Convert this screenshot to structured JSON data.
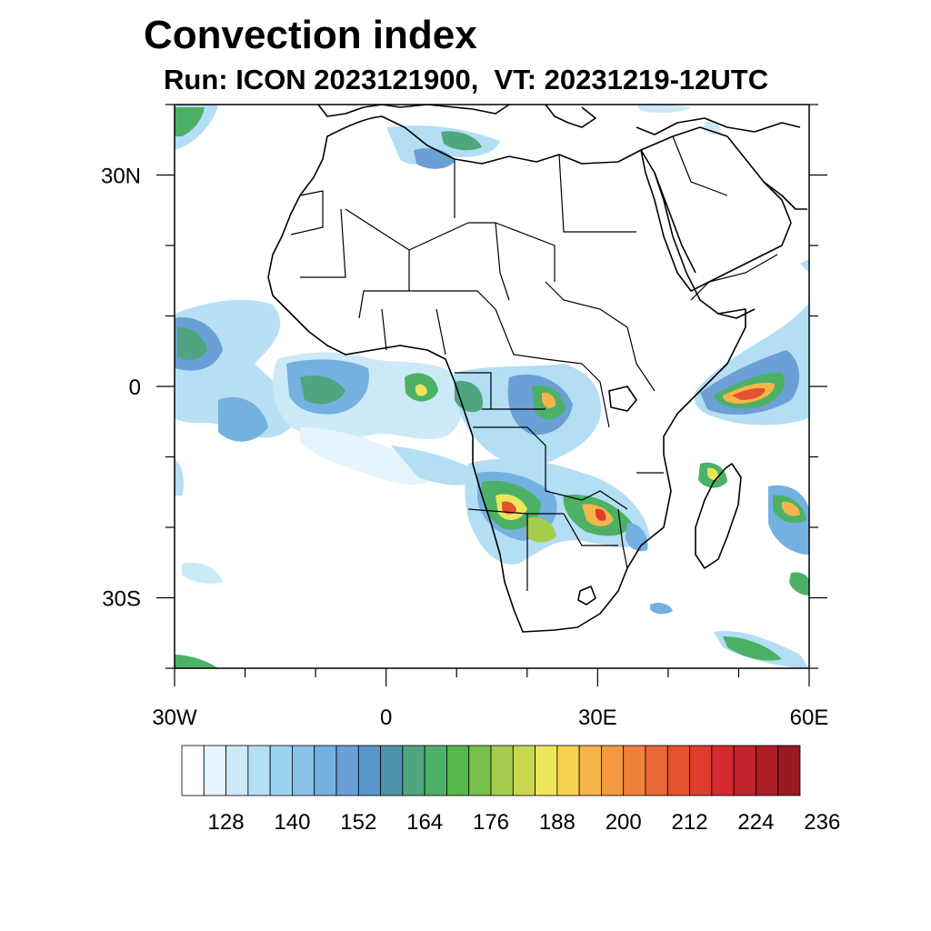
{
  "title": "Convection index",
  "subtitle": "Run: ICON 2023121900,  VT: 20231219-12UTC",
  "map": {
    "lon_range": [
      -30,
      60
    ],
    "lat_range": [
      -40,
      40
    ],
    "lon_ticks": [
      {
        "value": -30,
        "label": "30W"
      },
      {
        "value": 0,
        "label": "0"
      },
      {
        "value": 30,
        "label": "30E"
      },
      {
        "value": 60,
        "label": "60E"
      }
    ],
    "lat_ticks": [
      {
        "value": 30,
        "label": "30N"
      },
      {
        "value": 0,
        "label": "0"
      },
      {
        "value": -30,
        "label": "30S"
      }
    ],
    "minor_lon_step": 10,
    "minor_lat_step": 10
  },
  "colorbar": {
    "colors": [
      "#ffffff",
      "#e6f4fb",
      "#cce9f7",
      "#b3def4",
      "#9ad3f0",
      "#88c2e8",
      "#74b0e0",
      "#6aa0d6",
      "#5896cc",
      "#4f92a8",
      "#4ea57f",
      "#4cb166",
      "#55b848",
      "#7abf4a",
      "#a5cc4d",
      "#c9d74e",
      "#ede55a",
      "#f8d050",
      "#f6b44a",
      "#f59a40",
      "#f0803a",
      "#ea6834",
      "#e4522e",
      "#de3c2c",
      "#d42a2e",
      "#c2222c",
      "#ac1d26",
      "#961a20"
    ],
    "labels": [
      "128",
      "140",
      "152",
      "164",
      "176",
      "188",
      "200",
      "212",
      "224",
      "236"
    ],
    "label_start_index": 2,
    "label_every": 3
  }
}
